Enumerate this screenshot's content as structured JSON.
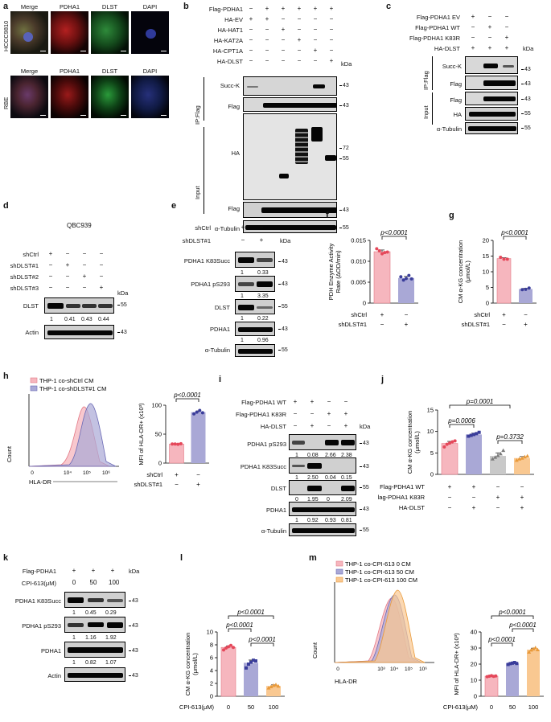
{
  "panels": {
    "a": "a",
    "b": "b",
    "c": "c",
    "d": "d",
    "e": "e",
    "f": "f",
    "g": "g",
    "h": "h",
    "i": "i",
    "j": "j",
    "k": "k",
    "l": "l",
    "m": "m"
  },
  "kda": "kDa",
  "a": {
    "channels": [
      "Merge",
      "PDHA1",
      "DLST",
      "DAPI"
    ],
    "rows": [
      "HCCC9810",
      "RBE"
    ]
  },
  "b": {
    "conditions": [
      "Flag-PDHA1",
      "HA-EV",
      "HA-HAT1",
      "HA-KAT2A",
      "HA-CPT1A",
      "HA-DLST"
    ],
    "signs": [
      [
        "−",
        "+",
        "+",
        "+",
        "+",
        "+"
      ],
      [
        "+",
        "+",
        "−",
        "−",
        "−",
        "−"
      ],
      [
        "−",
        "−",
        "+",
        "−",
        "−",
        "−"
      ],
      [
        "−",
        "−",
        "−",
        "+",
        "−",
        "−"
      ],
      [
        "−",
        "−",
        "−",
        "−",
        "+",
        "−"
      ],
      [
        "−",
        "−",
        "−",
        "−",
        "−",
        "+"
      ]
    ],
    "ip": "IP:Flag",
    "input": "Input",
    "blots": [
      "Succ-K",
      "Flag",
      "HA",
      "Flag",
      "α-Tubulin"
    ],
    "markers": [
      "43",
      "43",
      "72",
      "55",
      "43",
      "55"
    ]
  },
  "c": {
    "conditions": [
      "Flag-PDHA1 EV",
      "Flag-PDHA1 WT",
      "Flag-PDHA1 K83R",
      "HA-DLST"
    ],
    "signs": [
      [
        "+",
        "−",
        "−"
      ],
      [
        "−",
        "+",
        "−"
      ],
      [
        "−",
        "−",
        "+"
      ],
      [
        "+",
        "+",
        "+"
      ]
    ],
    "ip": "IP:Flag",
    "input": "Input",
    "blots": [
      "Succ-K",
      "Flag",
      "Flag",
      "HA",
      "α-Tubulin"
    ],
    "markers": [
      "43",
      "43",
      "43",
      "55",
      "55"
    ]
  },
  "d": {
    "cell": "QBC939",
    "conditions": [
      "shCtrl",
      "shDLST#1",
      "shDLST#2",
      "shDLST#3"
    ],
    "signs": [
      [
        "+",
        "−",
        "−",
        "−"
      ],
      [
        "−",
        "+",
        "−",
        "−"
      ],
      [
        "−",
        "−",
        "+",
        "−"
      ],
      [
        "−",
        "−",
        "−",
        "+"
      ]
    ],
    "blots": [
      "DLST",
      "Actin"
    ],
    "markers": [
      "55",
      "43"
    ],
    "quant": [
      "1",
      "0.41",
      "0.43",
      "0.44"
    ]
  },
  "e": {
    "conditions": [
      "shCtrl",
      "shDLST#1"
    ],
    "signs": [
      [
        "+",
        "−"
      ],
      [
        "−",
        "+"
      ]
    ],
    "blots": [
      "PDHA1 K83Succ",
      "PDHA1 pS293",
      "DLST",
      "PDHA1",
      "α-Tubulin"
    ],
    "markers": [
      "43",
      "43",
      "55",
      "43",
      "55"
    ],
    "quant": [
      [
        "1",
        "0.33"
      ],
      [
        "1",
        "3.35"
      ],
      [
        "1",
        "0.22"
      ],
      [
        "1",
        "0.96"
      ]
    ]
  },
  "f": {
    "ylabel": "PDH Enzyme Activity Rate (ΔOD/min)",
    "pval": "p<0.0001",
    "rows": [
      "shCtrl",
      "shDLST#1"
    ],
    "signs": [
      [
        "+",
        "−"
      ],
      [
        "−",
        "+"
      ]
    ]
  },
  "g": {
    "ylabel": "CM α-KG concentration (μmol/L)",
    "pval": "p<0.0001",
    "rows": [
      "shCtrl",
      "shDLST#1"
    ],
    "signs": [
      [
        "+",
        "−"
      ],
      [
        "−",
        "+"
      ]
    ]
  },
  "h": {
    "legend": [
      "THP-1 co-shCtrl CM",
      "THP-1 co-shDLST#1 CM"
    ],
    "ylabel": "Count",
    "xlabel": "HLA-DR",
    "bar_ylabel": "MFI of HLA-DR+ (x10³)",
    "pval": "p<0.0001",
    "rows": [
      "shCtrl",
      "shDLST#1"
    ],
    "signs": [
      [
        "+",
        "−"
      ],
      [
        "−",
        "+"
      ]
    ],
    "colors": {
      "ctrl": "#f6b6be",
      "kd": "#a9a8d6"
    }
  },
  "i": {
    "conditions": [
      "Flag-PDHA1 WT",
      "Flag-PDHA1 K83R",
      "HA-DLST"
    ],
    "signs": [
      [
        "+",
        "+",
        "−",
        "−"
      ],
      [
        "−",
        "−",
        "+",
        "+"
      ],
      [
        "−",
        "+",
        "−",
        "+"
      ]
    ],
    "blots": [
      "PDHA1 pS293",
      "PDHA1 K83Succ",
      "DLST",
      "PDHA1",
      "α-Tubulin"
    ],
    "markers": [
      "43",
      "43",
      "55",
      "43",
      "55"
    ],
    "quant": [
      [
        "1",
        "0.08",
        "2.66",
        "2.38"
      ],
      [
        "1",
        "2.50",
        "0.04",
        "0.15"
      ],
      [
        "0",
        "1.95",
        "0",
        "2.09"
      ],
      [
        "1",
        "0.92",
        "0.93",
        "0.81"
      ]
    ]
  },
  "j": {
    "ylabel": "CM α-KG concentration (μmol/L)",
    "pvals": [
      "p=0.0001",
      "p=0.0006",
      "p=0.3732"
    ],
    "rows": [
      "Flag-PDHA1 WT",
      "Flag-PDHA1 K83R",
      "HA-DLST"
    ],
    "signs": [
      [
        "+",
        "+",
        "−",
        "−"
      ],
      [
        "−",
        "−",
        "+",
        "+"
      ],
      [
        "−",
        "+",
        "−",
        "+"
      ]
    ]
  },
  "k": {
    "conditions": [
      "Flag-PDHA1",
      "CPI-613(μM)"
    ],
    "signs": [
      [
        "+",
        "+",
        "+"
      ],
      [
        "0",
        "50",
        "100"
      ]
    ],
    "blots": [
      "PDHA1 K83Succ",
      "PDHA1 pS293",
      "PDHA1",
      "Actin"
    ],
    "markers": [
      "43",
      "43",
      "43",
      "43"
    ],
    "quant": [
      [
        "1",
        "0.45",
        "0.29"
      ],
      [
        "1",
        "1.16",
        "1.92"
      ],
      [
        "1",
        "0.82",
        "1.07"
      ]
    ]
  },
  "l": {
    "ylabel": "CM α-KG concentration (μmol/L)",
    "pvals": [
      "p<0.0001",
      "p<0.0001",
      "p<0.0001"
    ],
    "xlabel": "CPI-613(μM)",
    "xticks": [
      "0",
      "50",
      "100"
    ]
  },
  "m": {
    "legend": [
      "THP-1 co-CPI-613 0 CM",
      "THP-1 co-CPI-613 50 CM",
      "THP-1 co-CPI-613 100 CM"
    ],
    "ylabel": "Count",
    "xlabel": "HLA-DR",
    "bar_ylabel": "MFI of HLA-DR+ (x10³)",
    "pvals": [
      "p<0.0001",
      "p<0.0001",
      "p<0.0001"
    ],
    "bar_xlabel": "CPI-613(μM)",
    "xticks": [
      "0",
      "50",
      "100"
    ],
    "colors": {
      "c0": "#f6b6be",
      "c50": "#a9a8d6",
      "c100": "#f9c891"
    }
  },
  "chart_data": [
    {
      "panel": "f",
      "type": "bar",
      "categories": [
        "shCtrl",
        "shDLST#1"
      ],
      "values": [
        0.0123,
        0.006
      ],
      "points": [
        [
          0.013,
          0.0125,
          0.0118,
          0.0121,
          0.0122
        ],
        [
          0.0063,
          0.0055,
          0.0059,
          0.0066,
          0.0058
        ]
      ],
      "ylim": [
        0,
        0.015
      ],
      "yticks": [
        0,
        0.005,
        0.01,
        0.015
      ],
      "ylabel": "PDH Enzyme Activity Rate (ΔOD/min)",
      "colors": [
        "#f6b6be",
        "#a9a8d6"
      ]
    },
    {
      "panel": "g",
      "type": "bar",
      "categories": [
        "shCtrl",
        "shDLST#1"
      ],
      "values": [
        14.2,
        4.5
      ],
      "points": [
        [
          14.6,
          14.0,
          14.0
        ],
        [
          4.3,
          4.4,
          4.8
        ]
      ],
      "ylim": [
        0,
        20
      ],
      "yticks": [
        0,
        5,
        10,
        15,
        20
      ],
      "ylabel": "CM α-KG concentration (μmol/L)",
      "colors": [
        "#f6b6be",
        "#a9a8d6"
      ]
    },
    {
      "panel": "h",
      "type": "bar",
      "categories": [
        "shCtrl",
        "shDLST#1"
      ],
      "values": [
        33,
        88
      ],
      "points": [
        [
          33,
          33,
          32.5,
          33.5
        ],
        [
          85,
          88,
          91,
          87
        ]
      ],
      "ylim": [
        0,
        100
      ],
      "yticks": [
        0,
        50,
        100
      ],
      "ylabel": "MFI of HLA-DR+ (x10³)",
      "colors": [
        "#f6b6be",
        "#a9a8d6"
      ]
    },
    {
      "panel": "j",
      "type": "bar",
      "categories": [
        "WT",
        "WT+DLST",
        "K83R",
        "K83R+DLST"
      ],
      "values": [
        7.2,
        9.3,
        4.3,
        3.8
      ],
      "points": [
        [
          6.4,
          7.0,
          7.3,
          7.6,
          7.8
        ],
        [
          8.9,
          9.1,
          9.3,
          9.5,
          9.8
        ],
        [
          3.6,
          4.0,
          4.4,
          4.8,
          5.6
        ],
        [
          3.3,
          3.6,
          3.8,
          4.1,
          4.3
        ]
      ],
      "ylim": [
        0,
        15
      ],
      "yticks": [
        0,
        5,
        10,
        15
      ],
      "ylabel": "CM α-KG concentration (μmol/L)",
      "colors": [
        "#f6b6be",
        "#a9a8d6",
        "#c9c9c9",
        "#f9c891"
      ]
    },
    {
      "panel": "l",
      "type": "bar",
      "categories": [
        "0",
        "50",
        "100"
      ],
      "values": [
        7.6,
        5.2,
        1.6
      ],
      "points": [
        [
          7.2,
          7.5,
          7.7,
          7.9,
          7.6
        ],
        [
          4.4,
          5.0,
          5.3,
          5.6,
          5.5
        ],
        [
          1.3,
          1.5,
          1.7,
          1.8,
          1.6
        ]
      ],
      "ylim": [
        0,
        10
      ],
      "yticks": [
        0,
        2,
        4,
        6,
        8,
        10
      ],
      "ylabel": "CM α-KG concentration (μmol/L)",
      "xlabel": "CPI-613(μM)",
      "colors": [
        "#f6b6be",
        "#a9a8d6",
        "#f9c891"
      ]
    },
    {
      "panel": "m",
      "type": "bar",
      "categories": [
        "0",
        "50",
        "100"
      ],
      "values": [
        12.5,
        20.5,
        29
      ],
      "points": [
        [
          12.2,
          12.5,
          12.8,
          12.4,
          12.6
        ],
        [
          19.8,
          20.3,
          20.6,
          21.0,
          20.4
        ],
        [
          27.5,
          28.8,
          29.5,
          30.2,
          29.0
        ]
      ],
      "ylim": [
        0,
        40
      ],
      "yticks": [
        0,
        10,
        20,
        30,
        40
      ],
      "ylabel": "MFI of HLA-DR+ (x10³)",
      "xlabel": "CPI-613(μM)",
      "colors": [
        "#f6b6be",
        "#a9a8d6",
        "#f9c891"
      ]
    }
  ]
}
